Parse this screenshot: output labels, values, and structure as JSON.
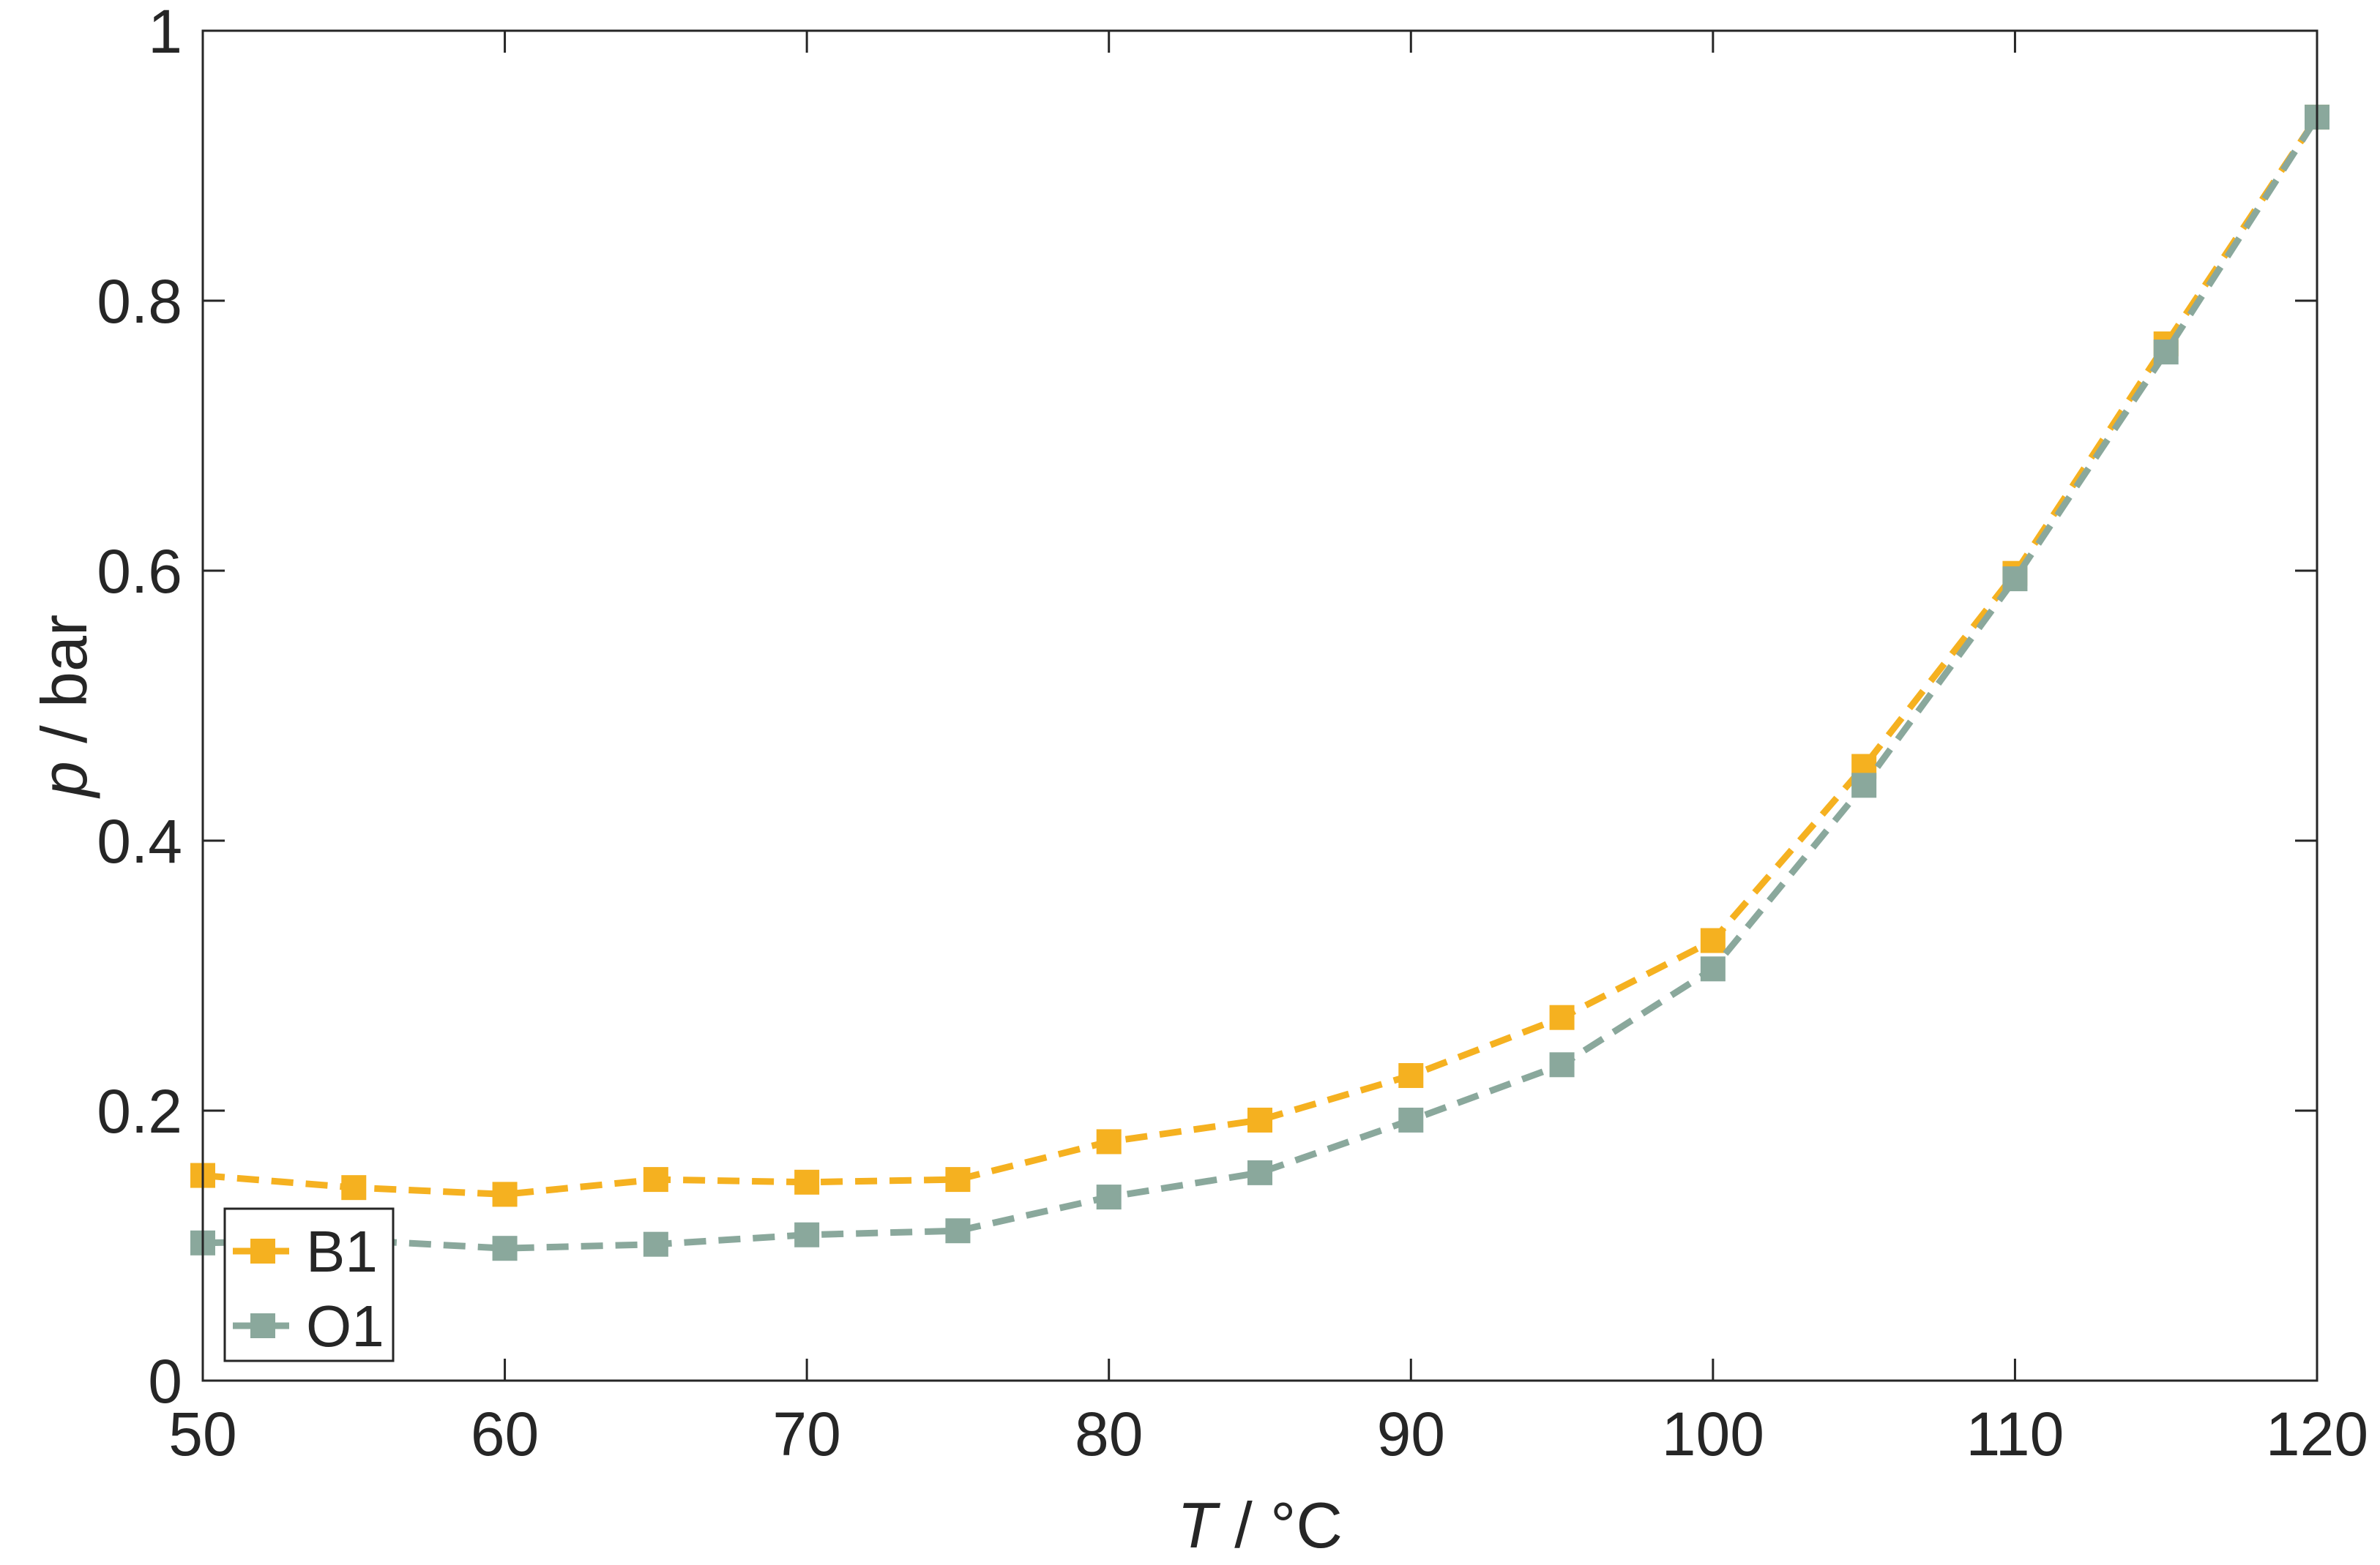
{
  "chart_data": {
    "type": "line",
    "x": [
      50,
      55,
      60,
      65,
      70,
      75,
      80,
      85,
      90,
      95,
      100,
      105,
      110,
      115,
      120
    ],
    "series": [
      {
        "name": "B1",
        "color": "#F5B120",
        "marker": "square",
        "line_style": "dashed",
        "values": [
          0.152,
          0.143,
          0.138,
          0.149,
          0.147,
          0.149,
          0.177,
          0.193,
          0.226,
          0.269,
          0.326,
          0.455,
          0.598,
          0.768,
          0.936
        ]
      },
      {
        "name": "O1",
        "color": "#8AA89C",
        "marker": "square",
        "line_style": "dashed",
        "values": [
          0.102,
          0.104,
          0.098,
          0.101,
          0.108,
          0.111,
          0.136,
          0.154,
          0.193,
          0.234,
          0.305,
          0.441,
          0.594,
          0.762,
          0.936
        ]
      }
    ],
    "xlim": [
      50,
      120
    ],
    "ylim": [
      0,
      1
    ],
    "x_ticks": [
      "50",
      "60",
      "70",
      "80",
      "90",
      "100",
      "110",
      "120"
    ],
    "y_ticks": [
      "0",
      "0.2",
      "0.4",
      "0.6",
      "0.8",
      "1"
    ],
    "xlabel": {
      "var": "T",
      "unit": " / °C"
    },
    "ylabel": {
      "var": "p",
      "unit": " / bar"
    },
    "grid": false,
    "legend": {
      "position": "bottom-left",
      "entries": [
        "B1",
        "O1"
      ]
    }
  }
}
